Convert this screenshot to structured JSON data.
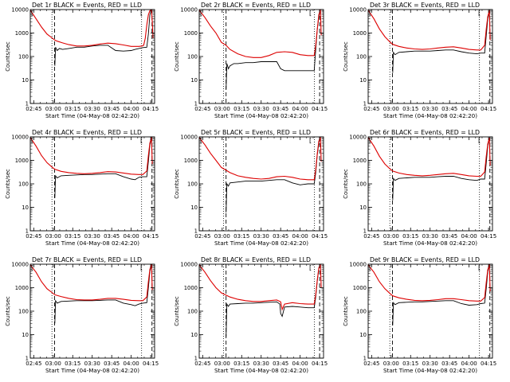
{
  "colors": {
    "events": "#000000",
    "lld": "#dd0000",
    "axis": "#000000"
  },
  "common": {
    "xlabel": "Start Time (04-May-08 02:42:20)",
    "ylabel": "Counts/sec",
    "x_tick_labels": [
      "02:45",
      "03:00",
      "03:15",
      "03:30",
      "03:45",
      "04:00",
      "04:15"
    ],
    "y_tick_labels": [
      "1",
      "10",
      "100",
      "1000",
      "10000"
    ],
    "x_range_hours": [
      2.7056,
      4.3
    ],
    "y_range": [
      1,
      10000
    ],
    "y_scale": "log",
    "corner_glyph_left": "[",
    "corner_glyph_right": "["
  },
  "chart_data": [
    {
      "type": "line",
      "title": "Det 1r BLACK = Events, RED = LLD",
      "vlines_dotted": [
        2.9833,
        4.1333
      ],
      "vlines_dashed": [
        3.0167,
        4.2667
      ],
      "series": [
        {
          "key": "lld",
          "x": [
            2.7056,
            2.78,
            2.85,
            2.92,
            2.99,
            3.02,
            3.05,
            3.12,
            3.2,
            3.3,
            3.4,
            3.5,
            3.6,
            3.7,
            3.8,
            3.9,
            4.0,
            4.1,
            4.14,
            4.16,
            4.18,
            4.2,
            4.22,
            4.24,
            4.26,
            4.27,
            4.28
          ],
          "y": [
            9500,
            4000,
            1800,
            900,
            600,
            500,
            450,
            380,
            320,
            280,
            280,
            300,
            340,
            370,
            350,
            310,
            270,
            270,
            280,
            300,
            600,
            2200,
            6000,
            9000,
            10000,
            3000,
            600
          ]
        },
        {
          "key": "events",
          "x": [
            3.02,
            3.03,
            3.05,
            3.08,
            3.12,
            3.2,
            3.3,
            3.4,
            3.5,
            3.6,
            3.7,
            3.8,
            3.9,
            4.0,
            4.05,
            4.1,
            4.15,
            4.2,
            4.22,
            4.24,
            4.26
          ],
          "y": [
            40,
            250,
            180,
            220,
            200,
            220,
            250,
            250,
            280,
            300,
            300,
            180,
            170,
            180,
            200,
            220,
            240,
            250,
            900,
            6000,
            9000
          ]
        }
      ]
    },
    {
      "type": "line",
      "title": "Det 2r BLACK = Events, RED = LLD",
      "vlines_dotted": [
        3.0167,
        4.1833
      ],
      "vlines_dashed": [
        3.05,
        4.25
      ],
      "series": [
        {
          "key": "lld",
          "x": [
            2.7056,
            2.78,
            2.85,
            2.92,
            2.99,
            3.05,
            3.1,
            3.2,
            3.3,
            3.4,
            3.5,
            3.6,
            3.7,
            3.8,
            3.9,
            4.0,
            4.1,
            4.18,
            4.2,
            4.22,
            4.24,
            4.26,
            4.27
          ],
          "y": [
            9500,
            4500,
            2000,
            1000,
            400,
            300,
            200,
            130,
            100,
            90,
            90,
            110,
            150,
            160,
            150,
            120,
            110,
            110,
            300,
            1500,
            6000,
            10000,
            800
          ]
        },
        {
          "key": "events",
          "x": [
            3.05,
            3.06,
            3.08,
            3.1,
            3.15,
            3.2,
            3.3,
            3.4,
            3.5,
            3.6,
            3.7,
            3.75,
            3.8,
            3.9,
            4.0,
            4.1,
            4.15,
            4.18,
            4.2,
            4.22,
            4.24,
            4.26
          ],
          "y": [
            4,
            50,
            30,
            40,
            50,
            50,
            55,
            55,
            60,
            60,
            60,
            30,
            25,
            25,
            25,
            25,
            25,
            25,
            200,
            1500,
            5000,
            9000
          ]
        }
      ]
    },
    {
      "type": "line",
      "title": "Det 3r BLACK = Events, RED = LLD",
      "vlines_dotted": [
        2.9833,
        4.1333
      ],
      "vlines_dashed": [
        3.0167,
        4.2667
      ],
      "series": [
        {
          "key": "lld",
          "x": [
            2.7056,
            2.78,
            2.85,
            2.92,
            2.99,
            3.02,
            3.1,
            3.2,
            3.3,
            3.4,
            3.5,
            3.6,
            3.7,
            3.8,
            3.9,
            4.0,
            4.1,
            4.15,
            4.2,
            4.22,
            4.24,
            4.26,
            4.27
          ],
          "y": [
            9500,
            4000,
            1500,
            700,
            400,
            330,
            270,
            230,
            210,
            200,
            210,
            230,
            250,
            260,
            230,
            200,
            190,
            190,
            300,
            1500,
            5000,
            9000,
            500
          ]
        },
        {
          "key": "events",
          "x": [
            3.02,
            3.03,
            3.05,
            3.1,
            3.2,
            3.3,
            3.4,
            3.5,
            3.6,
            3.7,
            3.8,
            3.9,
            4.0,
            4.1,
            4.15,
            4.2,
            4.22,
            4.24,
            4.26
          ],
          "y": [
            20,
            150,
            120,
            150,
            160,
            170,
            170,
            170,
            180,
            190,
            190,
            160,
            140,
            130,
            140,
            140,
            800,
            4000,
            8000
          ]
        }
      ]
    },
    {
      "type": "line",
      "title": "Det 4r BLACK = Events, RED = LLD",
      "vlines_dotted": [
        2.9833,
        4.1333
      ],
      "vlines_dashed": [
        3.0167,
        4.2667
      ],
      "series": [
        {
          "key": "lld",
          "x": [
            2.7056,
            2.78,
            2.85,
            2.92,
            2.99,
            3.02,
            3.1,
            3.2,
            3.3,
            3.4,
            3.5,
            3.6,
            3.7,
            3.8,
            3.9,
            4.0,
            4.1,
            4.15,
            4.2,
            4.22,
            4.24,
            4.26,
            4.27
          ],
          "y": [
            9500,
            4000,
            1600,
            800,
            500,
            420,
            340,
            300,
            280,
            270,
            280,
            300,
            330,
            320,
            290,
            260,
            250,
            250,
            350,
            1600,
            5500,
            9500,
            700
          ]
        },
        {
          "key": "events",
          "x": [
            3.02,
            3.03,
            3.05,
            3.1,
            3.2,
            3.3,
            3.4,
            3.5,
            3.6,
            3.7,
            3.8,
            3.9,
            4.0,
            4.05,
            4.1,
            4.15,
            4.2,
            4.22,
            4.24,
            4.26
          ],
          "y": [
            25,
            220,
            180,
            220,
            230,
            240,
            250,
            250,
            260,
            270,
            270,
            200,
            160,
            150,
            190,
            200,
            200,
            900,
            4500,
            8500
          ]
        }
      ]
    },
    {
      "type": "line",
      "title": "Det 5r BLACK = Events, RED = LLD",
      "vlines_dotted": [
        3.0167,
        4.1833
      ],
      "vlines_dashed": [
        3.05,
        4.25
      ],
      "series": [
        {
          "key": "lld",
          "x": [
            2.7056,
            2.78,
            2.85,
            2.92,
            2.99,
            3.05,
            3.1,
            3.2,
            3.3,
            3.4,
            3.5,
            3.6,
            3.7,
            3.8,
            3.9,
            4.0,
            4.1,
            4.18,
            4.2,
            4.22,
            4.24,
            4.26,
            4.27
          ],
          "y": [
            9500,
            4500,
            2000,
            1000,
            500,
            380,
            300,
            220,
            190,
            170,
            160,
            170,
            200,
            210,
            190,
            160,
            150,
            150,
            400,
            2000,
            6500,
            10000,
            900
          ]
        },
        {
          "key": "events",
          "x": [
            3.05,
            3.06,
            3.08,
            3.1,
            3.2,
            3.3,
            3.4,
            3.5,
            3.6,
            3.7,
            3.8,
            3.9,
            4.0,
            4.1,
            4.18,
            4.2,
            4.22,
            4.24,
            4.26
          ],
          "y": [
            6,
            100,
            80,
            110,
            120,
            130,
            130,
            130,
            140,
            150,
            150,
            110,
            90,
            100,
            100,
            300,
            1800,
            5500,
            9000
          ]
        }
      ]
    },
    {
      "type": "line",
      "title": "Det 6r BLACK = Events, RED = LLD",
      "vlines_dotted": [
        2.9833,
        4.1333
      ],
      "vlines_dashed": [
        3.0167,
        4.2667
      ],
      "series": [
        {
          "key": "lld",
          "x": [
            2.7056,
            2.78,
            2.85,
            2.92,
            2.99,
            3.02,
            3.1,
            3.2,
            3.3,
            3.4,
            3.5,
            3.6,
            3.7,
            3.8,
            3.9,
            4.0,
            4.1,
            4.15,
            4.2,
            4.22,
            4.24,
            4.26,
            4.27
          ],
          "y": [
            9500,
            4000,
            1500,
            700,
            420,
            350,
            290,
            250,
            230,
            220,
            230,
            250,
            270,
            280,
            250,
            220,
            210,
            210,
            320,
            1500,
            5000,
            9000,
            600
          ]
        },
        {
          "key": "events",
          "x": [
            3.02,
            3.03,
            3.05,
            3.1,
            3.2,
            3.3,
            3.4,
            3.5,
            3.6,
            3.7,
            3.8,
            3.9,
            4.0,
            4.1,
            4.15,
            4.2,
            4.22,
            4.24,
            4.26
          ],
          "y": [
            20,
            170,
            140,
            170,
            180,
            190,
            190,
            190,
            200,
            210,
            210,
            170,
            150,
            140,
            160,
            160,
            800,
            4200,
            8500
          ]
        }
      ]
    },
    {
      "type": "line",
      "title": "Det 7r BLACK = Events, RED = LLD",
      "vlines_dotted": [
        2.9833,
        4.1333
      ],
      "vlines_dashed": [
        3.0167,
        4.2667
      ],
      "series": [
        {
          "key": "lld",
          "x": [
            2.7056,
            2.78,
            2.85,
            2.92,
            2.99,
            3.02,
            3.1,
            3.2,
            3.3,
            3.4,
            3.5,
            3.6,
            3.7,
            3.8,
            3.9,
            4.0,
            4.1,
            4.15,
            4.2,
            4.22,
            4.24,
            4.26,
            4.27
          ],
          "y": [
            9500,
            4500,
            1800,
            900,
            600,
            500,
            420,
            350,
            310,
            300,
            300,
            320,
            350,
            350,
            320,
            290,
            280,
            280,
            400,
            1800,
            6000,
            10000,
            800
          ]
        },
        {
          "key": "events",
          "x": [
            3.02,
            3.03,
            3.05,
            3.1,
            3.2,
            3.3,
            3.4,
            3.5,
            3.6,
            3.7,
            3.8,
            3.9,
            4.0,
            4.05,
            4.1,
            4.15,
            4.2,
            4.22,
            4.24,
            4.26
          ],
          "y": [
            30,
            280,
            220,
            260,
            270,
            280,
            280,
            280,
            290,
            300,
            300,
            220,
            190,
            170,
            200,
            220,
            230,
            1000,
            5000,
            9000
          ]
        }
      ]
    },
    {
      "type": "line",
      "title": "Det 8r BLACK = Events, RED = LLD",
      "vlines_dotted": [
        3.0167,
        4.1833
      ],
      "vlines_dashed": [
        3.05,
        4.25
      ],
      "series": [
        {
          "key": "lld",
          "x": [
            2.7056,
            2.78,
            2.85,
            2.92,
            2.99,
            3.05,
            3.1,
            3.2,
            3.3,
            3.4,
            3.5,
            3.6,
            3.7,
            3.75,
            3.77,
            3.8,
            3.9,
            4.0,
            4.1,
            4.18,
            4.2,
            4.22,
            4.24,
            4.26,
            4.27
          ],
          "y": [
            9500,
            4500,
            2000,
            1000,
            600,
            480,
            400,
            320,
            280,
            260,
            260,
            280,
            300,
            250,
            120,
            200,
            230,
            210,
            200,
            200,
            500,
            2200,
            7000,
            10000,
            1000
          ]
        },
        {
          "key": "events",
          "x": [
            3.05,
            3.06,
            3.08,
            3.1,
            3.2,
            3.3,
            3.4,
            3.5,
            3.6,
            3.7,
            3.74,
            3.75,
            3.77,
            3.8,
            3.9,
            4.0,
            4.1,
            4.18,
            4.2,
            4.22,
            4.24,
            4.26
          ],
          "y": [
            8,
            200,
            160,
            200,
            210,
            220,
            220,
            230,
            240,
            250,
            200,
            80,
            60,
            150,
            160,
            150,
            140,
            140,
            400,
            2000,
            6500,
            9500
          ]
        }
      ]
    },
    {
      "type": "line",
      "title": "Det 9r BLACK = Events, RED = LLD",
      "vlines_dotted": [
        2.9833,
        4.1333
      ],
      "vlines_dashed": [
        3.0167,
        4.2667
      ],
      "series": [
        {
          "key": "lld",
          "x": [
            2.7056,
            2.78,
            2.85,
            2.92,
            2.99,
            3.02,
            3.1,
            3.2,
            3.3,
            3.4,
            3.5,
            3.6,
            3.7,
            3.8,
            3.9,
            4.0,
            4.1,
            4.15,
            4.2,
            4.22,
            4.24,
            4.26,
            4.27
          ],
          "y": [
            9500,
            4500,
            1800,
            900,
            550,
            450,
            370,
            320,
            290,
            280,
            290,
            310,
            340,
            340,
            310,
            280,
            270,
            270,
            380,
            1700,
            5800,
            9500,
            700
          ]
        },
        {
          "key": "events",
          "x": [
            3.02,
            3.03,
            3.05,
            3.1,
            3.2,
            3.3,
            3.4,
            3.5,
            3.6,
            3.7,
            3.8,
            3.9,
            4.0,
            4.1,
            4.15,
            4.2,
            4.22,
            4.24,
            4.26
          ],
          "y": [
            25,
            230,
            190,
            230,
            240,
            250,
            250,
            260,
            270,
            280,
            280,
            210,
            180,
            190,
            210,
            220,
            950,
            4800,
            8800
          ]
        }
      ]
    }
  ]
}
